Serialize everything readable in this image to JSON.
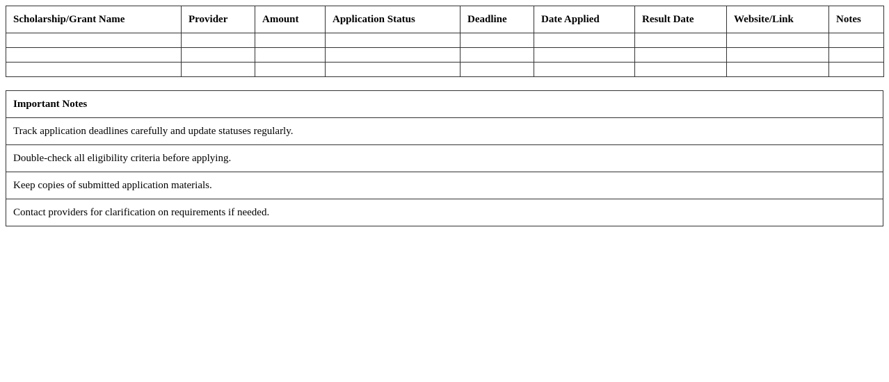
{
  "tracker": {
    "headers": [
      "Scholarship/Grant Name",
      "Provider",
      "Amount",
      "Application Status",
      "Deadline",
      "Date Applied",
      "Result Date",
      "Website/Link",
      "Notes"
    ],
    "rows": [
      [
        "",
        "",
        "",
        "",
        "",
        "",
        "",
        "",
        ""
      ],
      [
        "",
        "",
        "",
        "",
        "",
        "",
        "",
        "",
        ""
      ],
      [
        "",
        "",
        "",
        "",
        "",
        "",
        "",
        "",
        ""
      ]
    ]
  },
  "notes": {
    "title": "Important Notes",
    "items": [
      "Track application deadlines carefully and update statuses regularly.",
      "Double-check all eligibility criteria before applying.",
      "Keep copies of submitted application materials.",
      "Contact providers for clarification on requirements if needed."
    ]
  }
}
